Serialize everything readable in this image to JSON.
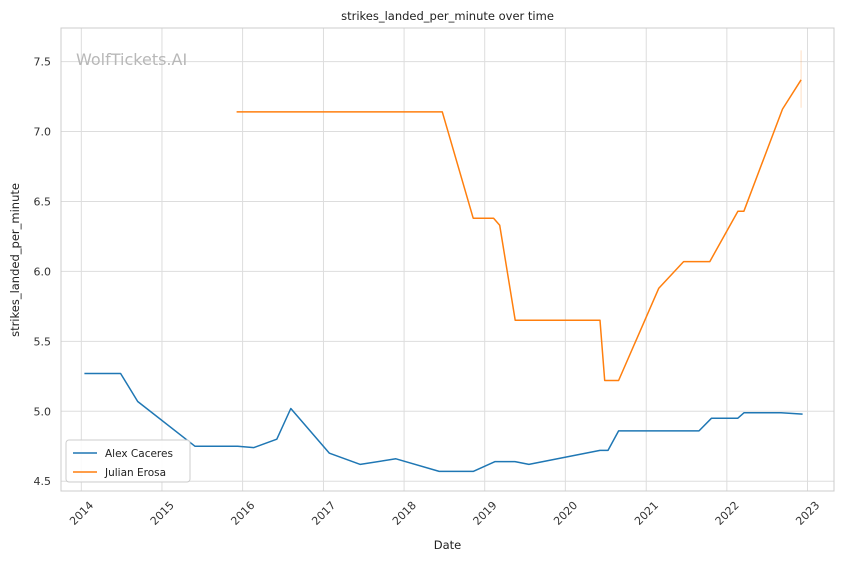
{
  "chart_data": {
    "type": "line",
    "title": "strikes_landed_per_minute over time",
    "xlabel": "Date",
    "ylabel": "strikes_landed_per_minute",
    "watermark": "WolfTickets.AI",
    "x_ticks": [
      "2014",
      "2015",
      "2016",
      "2017",
      "2018",
      "2019",
      "2020",
      "2021",
      "2022",
      "2023"
    ],
    "y_ticks": [
      "4.5",
      "5.0",
      "5.5",
      "6.0",
      "6.5",
      "7.0",
      "7.5"
    ],
    "xlim": [
      "2013-10-01",
      "2023-05-01"
    ],
    "ylim": [
      4.43,
      7.74
    ],
    "grid": true,
    "legend_position": "lower-left",
    "series": [
      {
        "name": "Alex Caceres",
        "color": "#1f77b4",
        "points": [
          [
            "2014-01-15",
            5.27
          ],
          [
            "2014-06-28",
            5.27
          ],
          [
            "2014-09-13",
            5.07
          ],
          [
            "2015-05-30",
            4.75
          ],
          [
            "2015-12-10",
            4.75
          ],
          [
            "2016-02-21",
            4.74
          ],
          [
            "2016-06-04",
            4.8
          ],
          [
            "2016-08-06",
            5.02
          ],
          [
            "2017-01-28",
            4.7
          ],
          [
            "2017-06-17",
            4.62
          ],
          [
            "2017-11-25",
            4.66
          ],
          [
            "2018-06-09",
            4.57
          ],
          [
            "2018-11-10",
            4.57
          ],
          [
            "2019-02-17",
            4.64
          ],
          [
            "2019-05-18",
            4.64
          ],
          [
            "2019-07-20",
            4.62
          ],
          [
            "2020-06-06",
            4.72
          ],
          [
            "2020-07-12",
            4.72
          ],
          [
            "2020-08-29",
            4.86
          ],
          [
            "2021-02-13",
            4.86
          ],
          [
            "2021-08-28",
            4.86
          ],
          [
            "2021-10-23",
            4.95
          ],
          [
            "2022-02-19",
            4.95
          ],
          [
            "2022-03-20",
            4.99
          ],
          [
            "2022-09-03",
            4.99
          ],
          [
            "2022-12-10",
            4.98
          ]
        ]
      },
      {
        "name": "Julian Erosa",
        "color": "#ff7f0e",
        "points": [
          [
            "2015-12-05",
            7.14
          ],
          [
            "2018-06-23",
            7.14
          ],
          [
            "2018-11-10",
            6.38
          ],
          [
            "2019-02-10",
            6.38
          ],
          [
            "2019-03-10",
            6.33
          ],
          [
            "2019-05-19",
            5.65
          ],
          [
            "2020-06-06",
            5.65
          ],
          [
            "2020-06-27",
            5.22
          ],
          [
            "2020-08-29",
            5.22
          ],
          [
            "2021-02-27",
            5.88
          ],
          [
            "2021-06-19",
            6.07
          ],
          [
            "2021-10-16",
            6.07
          ],
          [
            "2022-02-20",
            6.43
          ],
          [
            "2022-03-19",
            6.43
          ],
          [
            "2022-09-10",
            7.16
          ],
          [
            "2022-12-03",
            7.37
          ]
        ]
      }
    ]
  }
}
